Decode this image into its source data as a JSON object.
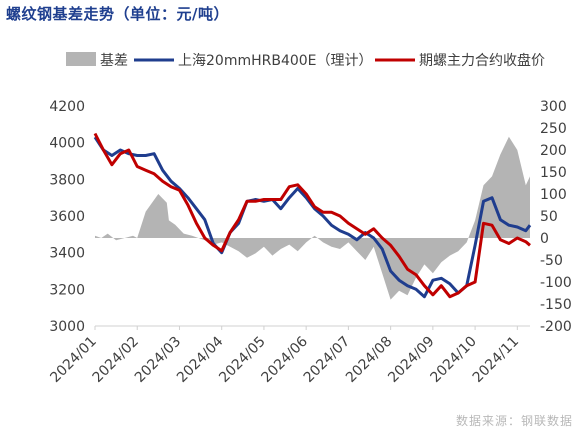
{
  "title": "螺纹钢基差走势（单位：元/吨）",
  "source": "数据来源：钢联数据",
  "chart_data": {
    "type": "line",
    "title": "螺纹钢基差走势（单位：元/吨）",
    "legend_position": "top",
    "grid": false,
    "y_left": {
      "min": 3000,
      "max": 4200,
      "ticks": [
        3000,
        3200,
        3400,
        3600,
        3800,
        4000,
        4200
      ]
    },
    "y_right": {
      "min": -200,
      "max": 300,
      "ticks": [
        -200,
        -150,
        -100,
        -50,
        0,
        50,
        100,
        150,
        200,
        250,
        300
      ]
    },
    "x_ticks": [
      "2024/01",
      "2024/02",
      "2024/03",
      "2024/04",
      "2024/05",
      "2024/06",
      "2024/07",
      "2024/08",
      "2024/09",
      "2024/10",
      "2024/11"
    ],
    "x_domain": [
      0,
      10.3
    ],
    "series": [
      {
        "name": "基差",
        "kind": "area",
        "axis": "right",
        "color": "#b4b4b4",
        "x": [
          0,
          0.15,
          0.3,
          0.5,
          0.7,
          0.9,
          1.0,
          1.2,
          1.5,
          1.7,
          1.75,
          1.9,
          2.1,
          2.3,
          2.6,
          2.8,
          3.0,
          3.2,
          3.4,
          3.6,
          3.8,
          4.0,
          4.2,
          4.4,
          4.6,
          4.8,
          5.0,
          5.2,
          5.4,
          5.6,
          5.8,
          6.0,
          6.2,
          6.4,
          6.6,
          6.8,
          7.0,
          7.2,
          7.4,
          7.6,
          7.8,
          8.0,
          8.2,
          8.4,
          8.6,
          8.8,
          9.0,
          9.2,
          9.4,
          9.6,
          9.8,
          10.0,
          10.2,
          10.3
        ],
        "values": [
          5,
          0,
          10,
          -5,
          0,
          5,
          0,
          60,
          100,
          80,
          40,
          30,
          10,
          5,
          -5,
          -15,
          -10,
          -20,
          -30,
          -45,
          -35,
          -20,
          -40,
          -25,
          -15,
          -30,
          -10,
          5,
          -10,
          -20,
          -25,
          -10,
          -30,
          -50,
          -20,
          -80,
          -140,
          -120,
          -130,
          -90,
          -60,
          -80,
          -55,
          -40,
          -30,
          -10,
          40,
          120,
          140,
          190,
          230,
          200,
          120,
          140
        ]
      },
      {
        "name": "上海20mmHRB400E（理计）",
        "kind": "line",
        "axis": "left",
        "color": "#1f3d8e",
        "x": [
          0,
          0.2,
          0.4,
          0.6,
          0.8,
          1.0,
          1.2,
          1.4,
          1.6,
          1.8,
          2.0,
          2.2,
          2.4,
          2.6,
          2.8,
          3.0,
          3.2,
          3.4,
          3.6,
          3.8,
          4.0,
          4.2,
          4.4,
          4.6,
          4.8,
          5.0,
          5.2,
          5.4,
          5.6,
          5.8,
          6.0,
          6.2,
          6.4,
          6.6,
          6.8,
          7.0,
          7.2,
          7.4,
          7.6,
          7.8,
          8.0,
          8.2,
          8.4,
          8.6,
          8.8,
          9.0,
          9.2,
          9.4,
          9.6,
          9.8,
          10.0,
          10.2,
          10.3
        ],
        "values": [
          4030,
          3960,
          3930,
          3960,
          3940,
          3930,
          3930,
          3940,
          3850,
          3790,
          3750,
          3700,
          3640,
          3580,
          3450,
          3400,
          3510,
          3560,
          3680,
          3690,
          3680,
          3690,
          3640,
          3700,
          3750,
          3700,
          3640,
          3600,
          3550,
          3520,
          3500,
          3470,
          3510,
          3480,
          3420,
          3300,
          3250,
          3220,
          3200,
          3160,
          3250,
          3260,
          3230,
          3180,
          3220,
          3440,
          3680,
          3700,
          3580,
          3550,
          3540,
          3520,
          3550
        ]
      },
      {
        "name": "期螺主力合约收盘价",
        "kind": "line",
        "axis": "left",
        "color": "#c00000",
        "x": [
          0,
          0.2,
          0.4,
          0.6,
          0.8,
          1.0,
          1.2,
          1.4,
          1.6,
          1.8,
          2.0,
          2.2,
          2.4,
          2.6,
          2.8,
          3.0,
          3.2,
          3.4,
          3.6,
          3.8,
          4.0,
          4.2,
          4.4,
          4.6,
          4.8,
          5.0,
          5.2,
          5.4,
          5.6,
          5.8,
          6.0,
          6.2,
          6.4,
          6.6,
          6.8,
          7.0,
          7.2,
          7.4,
          7.6,
          7.8,
          8.0,
          8.2,
          8.4,
          8.6,
          8.8,
          9.0,
          9.2,
          9.4,
          9.6,
          9.8,
          10.0,
          10.2,
          10.3
        ],
        "values": [
          4050,
          3960,
          3880,
          3940,
          3960,
          3870,
          3850,
          3830,
          3790,
          3760,
          3740,
          3660,
          3560,
          3480,
          3440,
          3410,
          3510,
          3580,
          3680,
          3680,
          3690,
          3690,
          3690,
          3760,
          3770,
          3720,
          3650,
          3620,
          3620,
          3600,
          3560,
          3530,
          3500,
          3530,
          3480,
          3440,
          3380,
          3310,
          3280,
          3220,
          3170,
          3220,
          3160,
          3180,
          3220,
          3240,
          3560,
          3550,
          3470,
          3450,
          3480,
          3460,
          3440
        ]
      }
    ]
  }
}
